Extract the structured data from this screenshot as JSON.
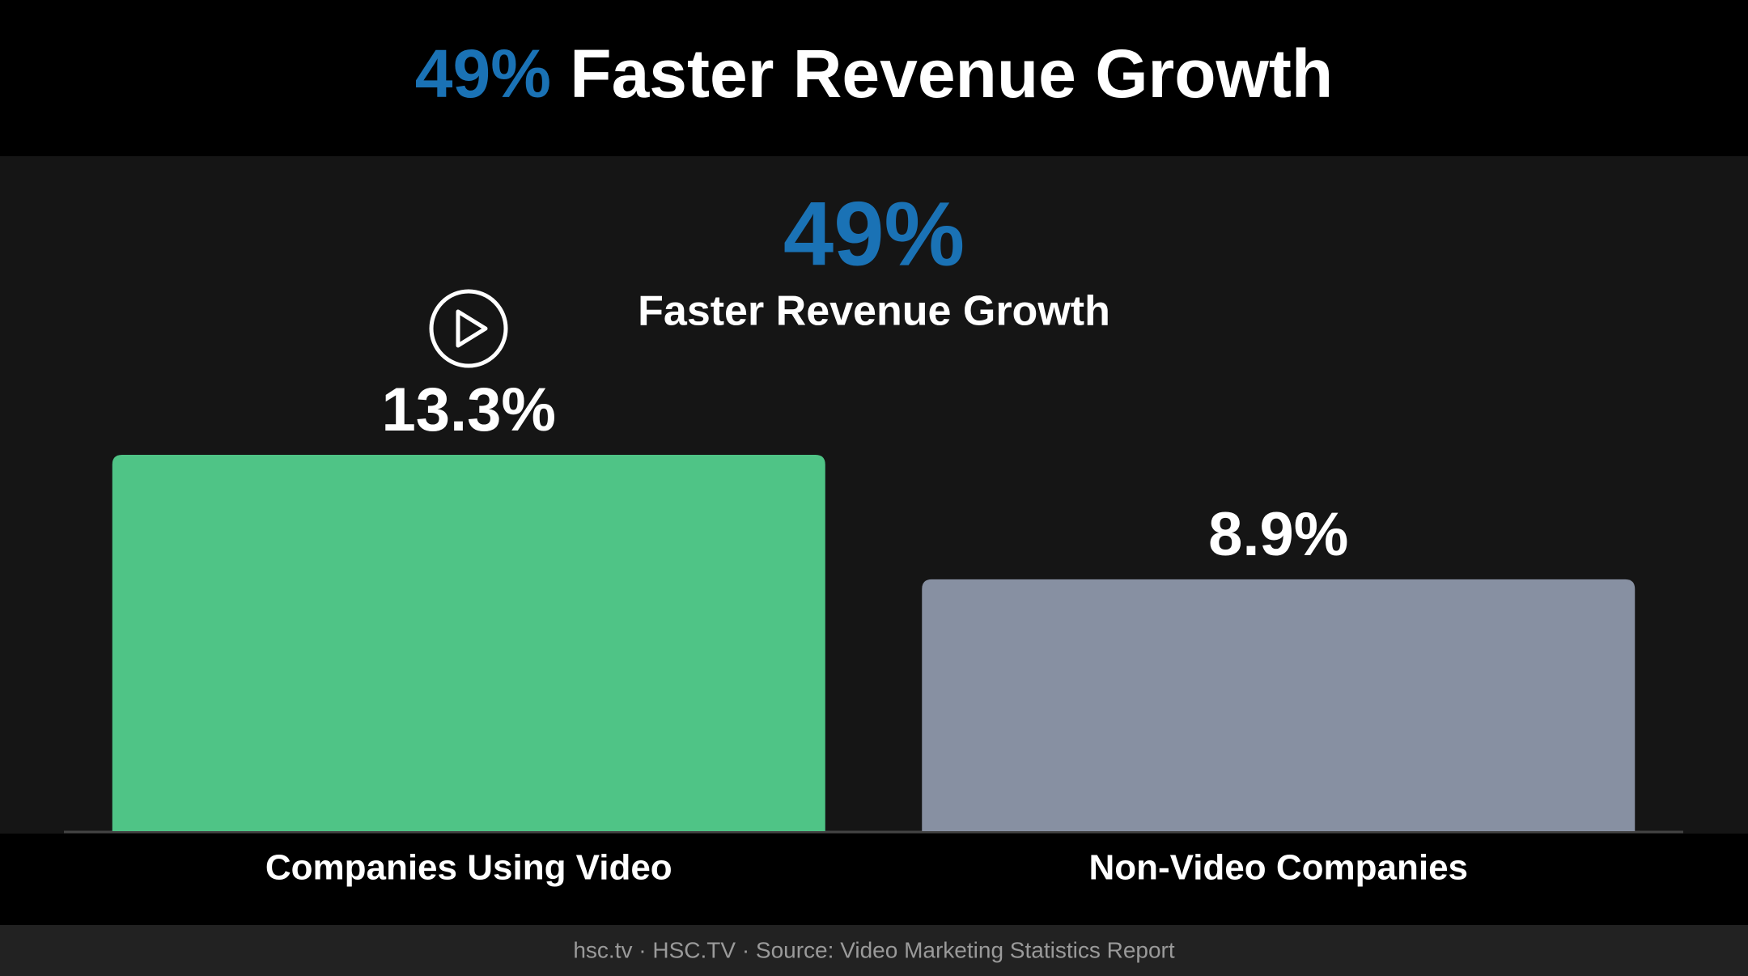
{
  "chart_data": {
    "type": "bar",
    "title_highlight": "49%",
    "title": "Faster Revenue Growth",
    "annotation": {
      "value": "49%",
      "text": "Faster Revenue Growth"
    },
    "categories": [
      "Companies Using Video",
      "Non-Video Companies"
    ],
    "values": [
      13.3,
      8.9
    ],
    "value_labels": [
      "13.3%",
      "8.9%"
    ],
    "colors": [
      "#4fc486",
      "#8790a2"
    ],
    "highlight_color": "#1a72b5",
    "footer": "hsc.tv · HSC.TV · Source: Video Marketing Statistics Report"
  }
}
